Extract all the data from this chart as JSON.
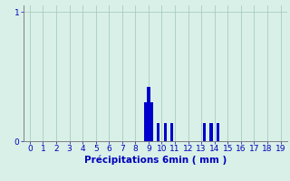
{
  "xlabel": "Précipitations 6min ( mm )",
  "xlim": [
    -0.5,
    19.5
  ],
  "ylim": [
    0,
    1.05
  ],
  "yticks": [
    0,
    1
  ],
  "xticks": [
    0,
    1,
    2,
    3,
    4,
    5,
    6,
    7,
    8,
    9,
    10,
    11,
    12,
    13,
    14,
    15,
    16,
    17,
    18,
    19
  ],
  "bar_positions": [
    8.75,
    9.0,
    9.25,
    9.75,
    10.25,
    10.75,
    13.25,
    13.75,
    14.25
  ],
  "bar_heights": [
    0.3,
    0.42,
    0.3,
    0.14,
    0.14,
    0.14,
    0.14,
    0.14,
    0.14
  ],
  "bar_width": 0.22,
  "bar_color": "#0000cc",
  "bg_color": "#d8f0e8",
  "grid_color": "#aaccc0",
  "axis_color": "#808080",
  "tick_color": "#0000bb",
  "label_color": "#0000bb",
  "tick_fontsize": 6.5,
  "label_fontsize": 7.5
}
